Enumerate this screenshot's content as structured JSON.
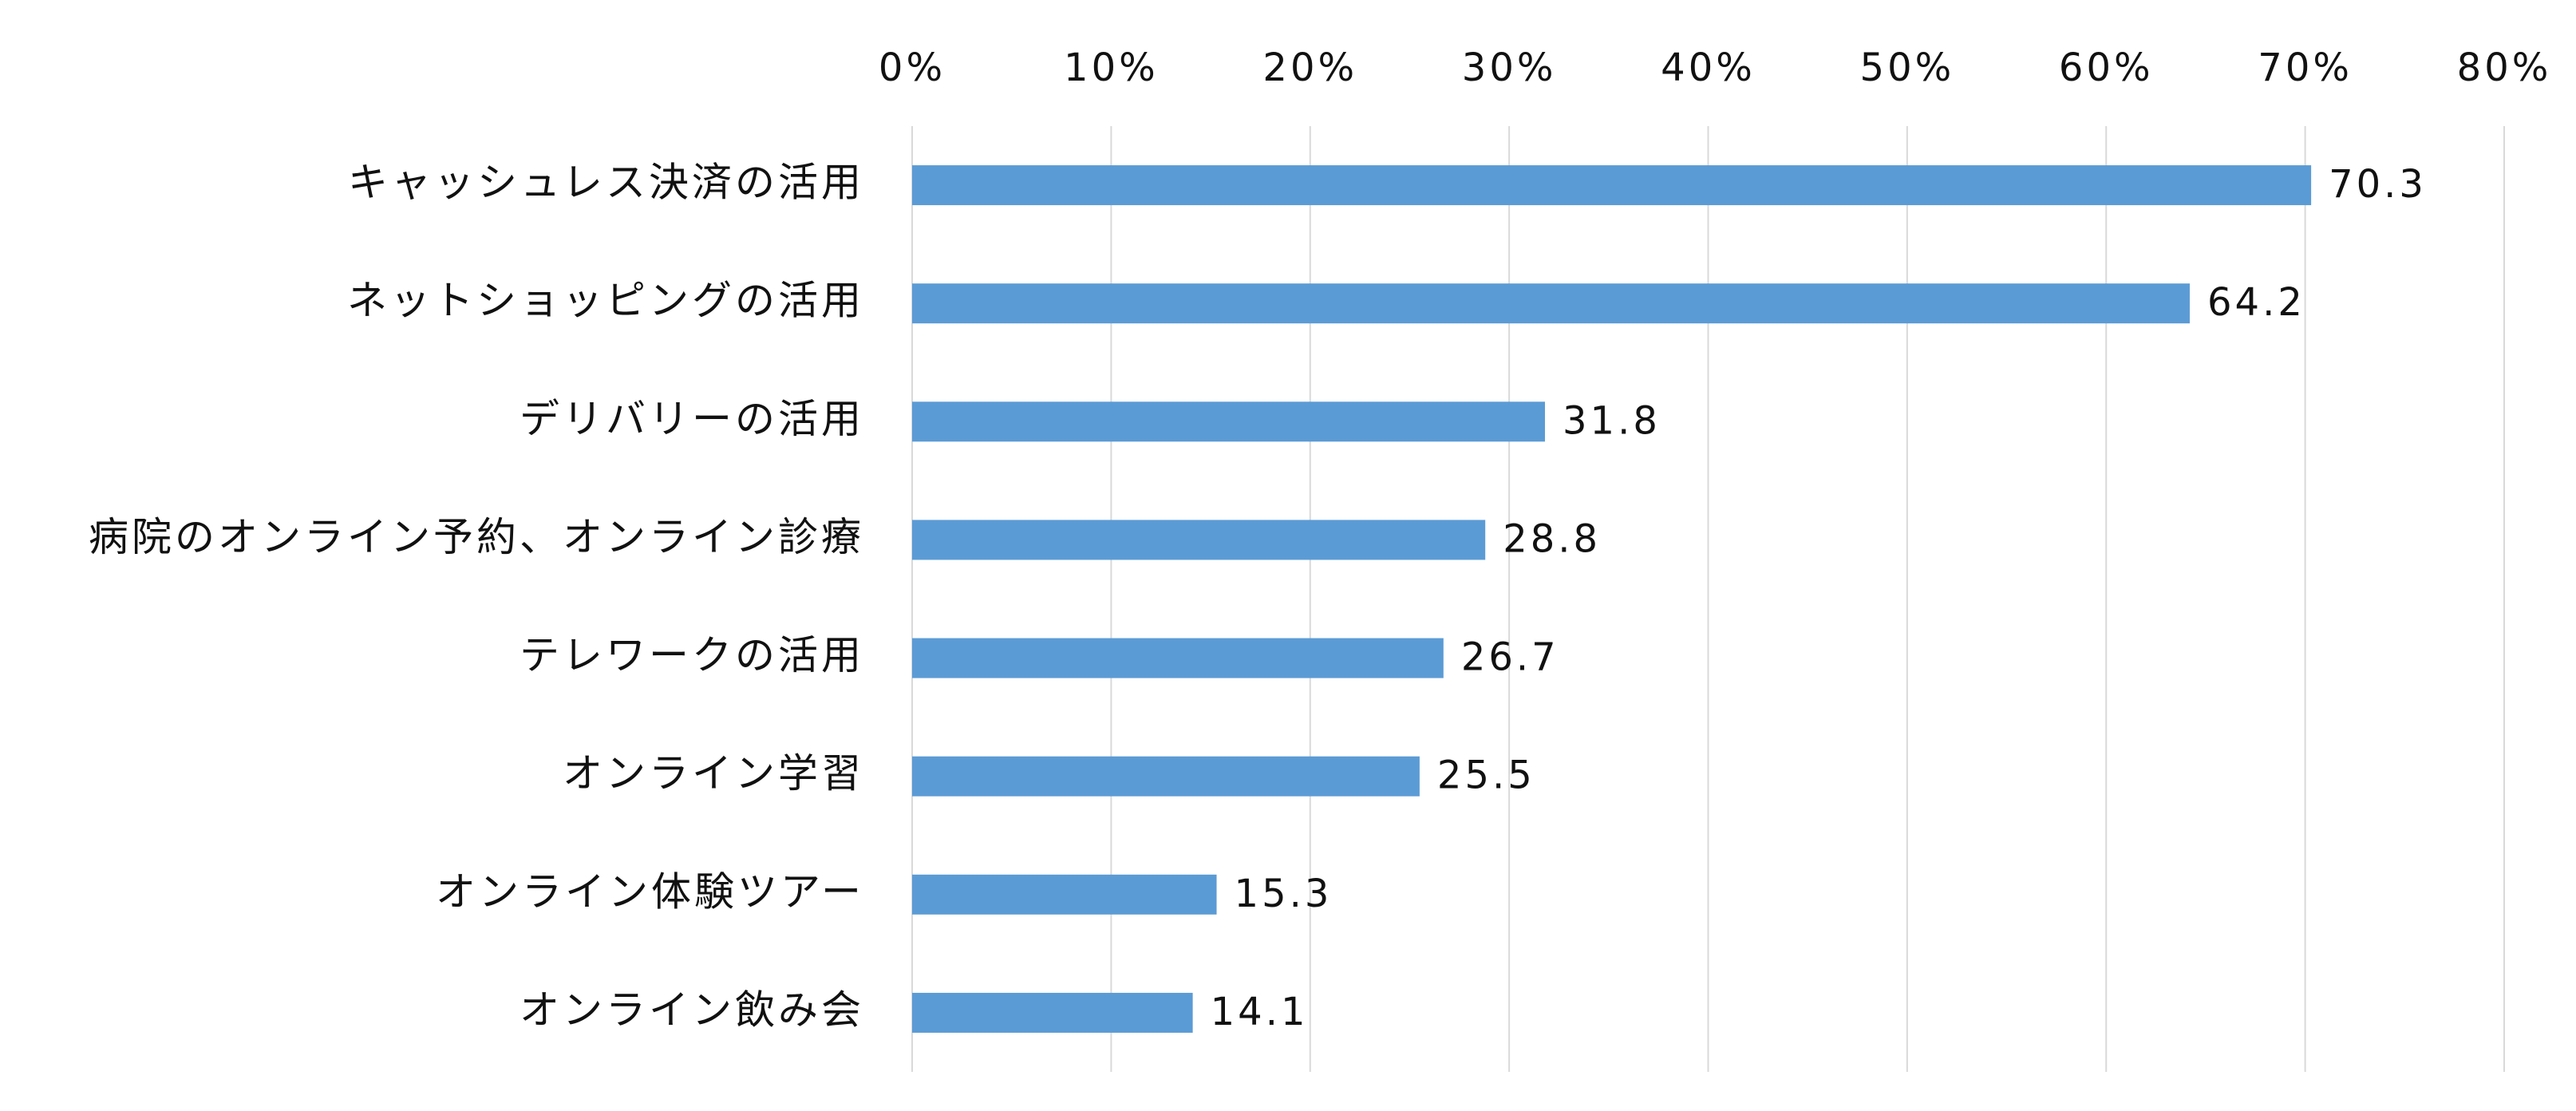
{
  "chart_data": {
    "type": "bar",
    "orientation": "horizontal",
    "categories": [
      "キャッシュレス決済の活用",
      "ネットショッピングの活用",
      "デリバリーの活用",
      "病院のオンライン予約、オンライン診療",
      "テレワークの活用",
      "オンライン学習",
      "オンライン体験ツアー",
      "オンライン飲み会"
    ],
    "values": [
      70.3,
      64.2,
      31.8,
      28.8,
      26.7,
      25.5,
      15.3,
      14.1
    ],
    "data_labels": [
      "70.3",
      "64.2",
      "31.8",
      "28.8",
      "26.7",
      "25.5",
      "15.3",
      "14.1"
    ],
    "x_ticks": [
      "0%",
      "10%",
      "20%",
      "30%",
      "40%",
      "50%",
      "60%",
      "70%",
      "80%"
    ],
    "xlim": [
      0,
      80
    ],
    "x_tick_step": 10,
    "x_axis_position": "top",
    "grid": true,
    "legend": "none",
    "bar_color": "#5b9bd5",
    "grid_color": "#d9d9d9",
    "text_color": "#111111"
  }
}
